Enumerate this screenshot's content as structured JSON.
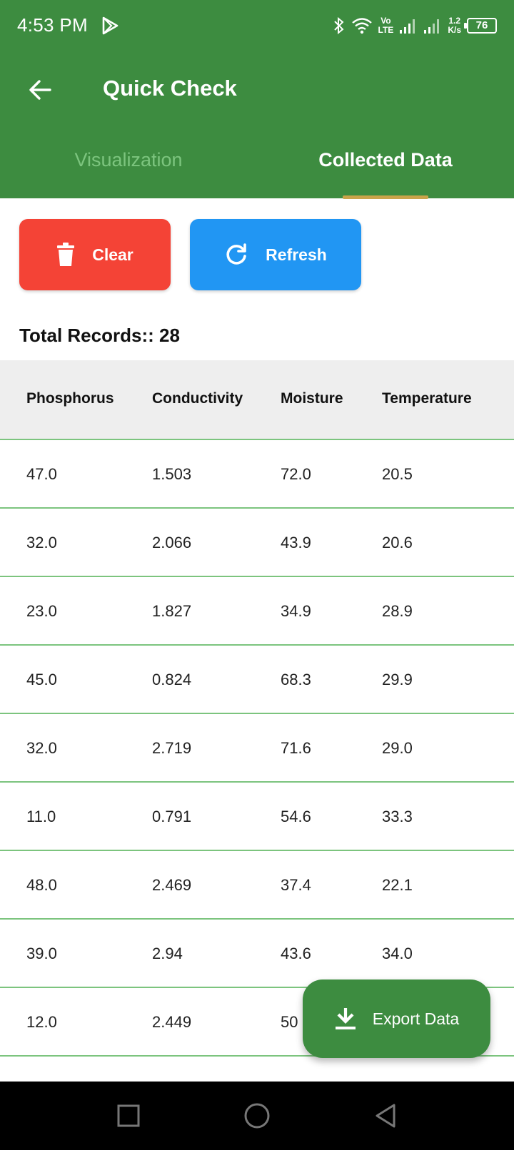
{
  "status_bar": {
    "time": "4:53 PM",
    "speed_top": "1.2",
    "speed_bottom": "K/s",
    "battery": "76",
    "network_label_top": "Vo",
    "network_label_bottom": "LTE"
  },
  "app_bar": {
    "title": "Quick Check"
  },
  "tabs": [
    {
      "label": "Visualization",
      "selected": false
    },
    {
      "label": "Collected Data",
      "selected": true
    }
  ],
  "actions": {
    "clear_label": "Clear",
    "refresh_label": "Refresh"
  },
  "summary": {
    "total_label": "Total Records:: 28"
  },
  "table": {
    "columns": [
      "Phosphorus",
      "Conductivity",
      "Moisture",
      "Temperature"
    ],
    "rows": [
      [
        "47.0",
        "1.503",
        "72.0",
        "20.5"
      ],
      [
        "32.0",
        "2.066",
        "43.9",
        "20.6"
      ],
      [
        "23.0",
        "1.827",
        "34.9",
        "28.9"
      ],
      [
        "45.0",
        "0.824",
        "68.3",
        "29.9"
      ],
      [
        "32.0",
        "2.719",
        "71.6",
        "29.0"
      ],
      [
        "11.0",
        "0.791",
        "54.6",
        "33.3"
      ],
      [
        "48.0",
        "2.469",
        "37.4",
        "22.1"
      ],
      [
        "39.0",
        "2.94",
        "43.6",
        "34.0"
      ],
      [
        "12.0",
        "2.449",
        "50",
        ""
      ]
    ]
  },
  "fab": {
    "label": "Export Data"
  },
  "colors": {
    "primary": "#3d8c40",
    "clear": "#f44336",
    "refresh": "#2196f3",
    "tab_indicator": "#c9a44a",
    "divider": "#7cc47e"
  },
  "icons": {
    "back": "arrow-left-icon",
    "clear": "trash-icon",
    "refresh": "refresh-icon",
    "export": "download-icon"
  }
}
